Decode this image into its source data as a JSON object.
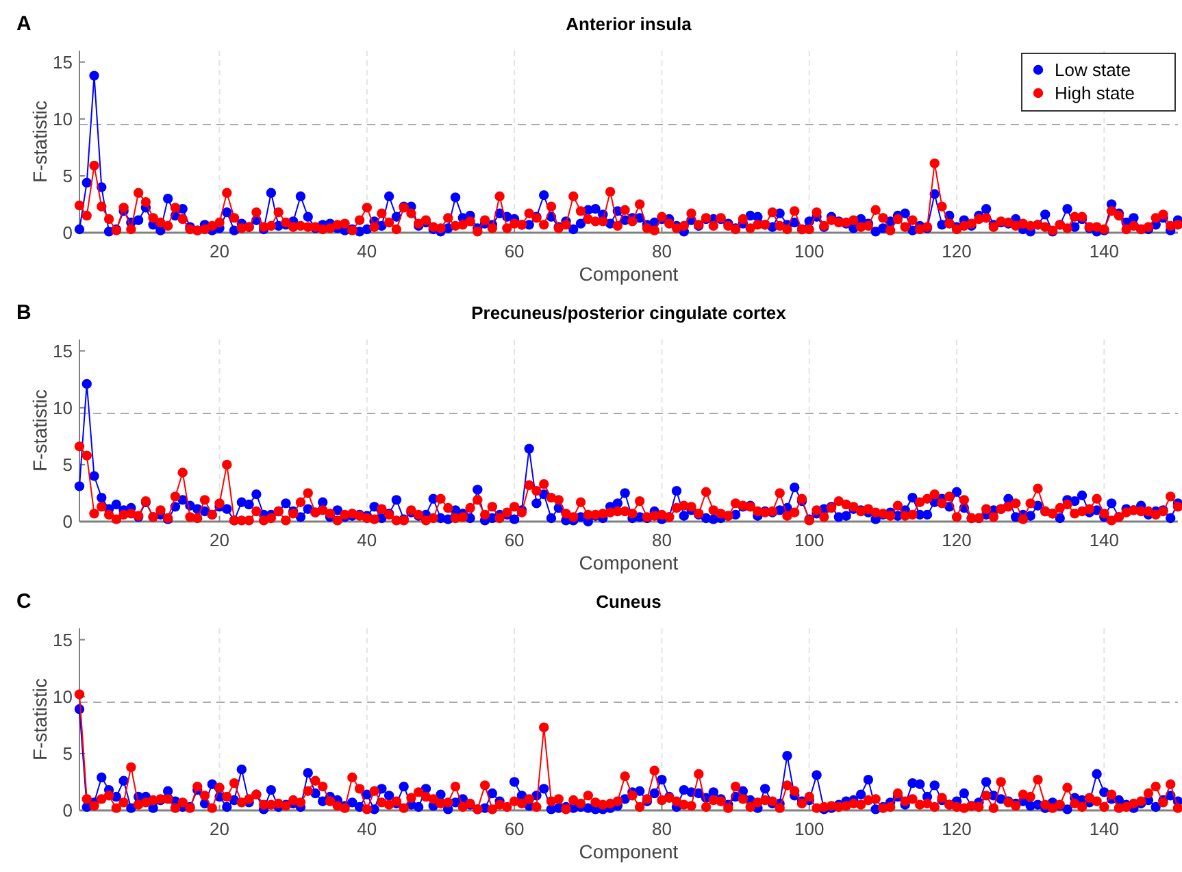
{
  "chart_data": [
    {
      "type": "line",
      "title": "Anterior insula",
      "annotations": [
        "A"
      ],
      "xlabel": "Component",
      "ylabel": "F-statistic",
      "xlim": [
        1,
        150
      ],
      "xticks": [
        20,
        40,
        60,
        80,
        100,
        120,
        140
      ],
      "ylim": [
        0,
        16
      ],
      "yticks": [
        0,
        5,
        10,
        15
      ],
      "grid": "x",
      "legend": "top right",
      "marker": "circle",
      "line_style": "solid",
      "ref_lines": [
        {
          "axis": "y",
          "value": 9.5,
          "color": "#aaaaaa",
          "line_style": "dashed"
        }
      ],
      "x": [
        1,
        2,
        3,
        4,
        5,
        6,
        7,
        8,
        9,
        10,
        11,
        12,
        13,
        14,
        15,
        16,
        17,
        18,
        19,
        20,
        21,
        22,
        23,
        24,
        25,
        26,
        27,
        28,
        29,
        30,
        31,
        32,
        33,
        34,
        35,
        36,
        37,
        38,
        39,
        40,
        41,
        42,
        43,
        44,
        45,
        46,
        47,
        48,
        49,
        50,
        51,
        52,
        53,
        54,
        55,
        56,
        57,
        58,
        59,
        60,
        61,
        62,
        63,
        64,
        65,
        66,
        67,
        68,
        69,
        70,
        71,
        72,
        73,
        74,
        75,
        76,
        77,
        78,
        79,
        80,
        81,
        82,
        83,
        84,
        85,
        86,
        87,
        88,
        89,
        90,
        91,
        92,
        93,
        94,
        95,
        96,
        97,
        98,
        99,
        100,
        101,
        102,
        103,
        104,
        105,
        106,
        107,
        108,
        109,
        110,
        111,
        112,
        113,
        114,
        115,
        116,
        117,
        118,
        119,
        120,
        121,
        122,
        123,
        124,
        125,
        126,
        127,
        128,
        129,
        130,
        131,
        132,
        133,
        134,
        135,
        136,
        137,
        138,
        139,
        140,
        141,
        142,
        143,
        144,
        145,
        146,
        147,
        148,
        149,
        150
      ],
      "series": [
        {
          "name": "Low state",
          "color": "#0000ff",
          "values": [
            0.3,
            4.4,
            13.8,
            4.0,
            0.1,
            0.3,
            1.9,
            0.9,
            1.1,
            2.2,
            0.7,
            0.2,
            3.0,
            1.5,
            2.1,
            0.5,
            0.2,
            0.7,
            0.2,
            0.4,
            1.8,
            0.2,
            0.8,
            0.5,
            1.1,
            0.3,
            3.5,
            0.6,
            0.7,
            1.0,
            3.2,
            1.4,
            0.4,
            0.7,
            0.8,
            0.4,
            0.2,
            0.3,
            0.1,
            0.3,
            1.0,
            0.6,
            3.2,
            1.4,
            2.3,
            2.3,
            0.6,
            0.9,
            0.3,
            0.1,
            0.4,
            3.1,
            1.3,
            1.5,
            0.4,
            0.8,
            0.7,
            1.7,
            1.4,
            1.2,
            0.7,
            0.7,
            1.4,
            3.3,
            1.4,
            0.5,
            1.0,
            0.3,
            0.8,
            2.0,
            2.1,
            1.6,
            0.8,
            1.9,
            1.1,
            1.3,
            1.3,
            0.7,
            0.9,
            1.2,
            1.2,
            0.6,
            0.1,
            1.1,
            0.6,
            1.2,
            1.2,
            1.2,
            0.8,
            0.4,
            0.8,
            1.5,
            1.4,
            0.7,
            0.5,
            1.7,
            0.7,
            0.9,
            0.3,
            1.0,
            1.4,
            0.5,
            1.4,
            1.0,
            0.8,
            0.4,
            1.2,
            0.8,
            0.1,
            0.4,
            1.0,
            1.5,
            1.7,
            0.2,
            0.6,
            0.4,
            3.4,
            0.7,
            1.5,
            0.5,
            1.1,
            0.6,
            1.5,
            2.1,
            0.7,
            0.9,
            0.8,
            1.2,
            0.3,
            0.1,
            0.7,
            1.6,
            0.1,
            0.7,
            2.1,
            0.5,
            1.2,
            0.4,
            0.1,
            0.2,
            2.5,
            1.7,
            0.9,
            1.3,
            0.3,
            0.3,
            0.7,
            1.3,
            0.2,
            1.1
          ]
        },
        {
          "name": "High state",
          "color": "#ff0000",
          "values": [
            2.4,
            1.5,
            5.9,
            2.3,
            1.2,
            0.2,
            2.2,
            0.3,
            3.5,
            2.7,
            1.3,
            0.9,
            0.6,
            2.2,
            1.2,
            0.3,
            0.2,
            0.3,
            0.6,
            0.9,
            3.5,
            1.3,
            0.4,
            0.5,
            1.8,
            0.5,
            0.6,
            1.8,
            0.9,
            0.5,
            0.6,
            0.5,
            0.5,
            0.3,
            0.4,
            0.7,
            0.8,
            0.2,
            1.1,
            2.2,
            0.5,
            1.7,
            0.9,
            0.3,
            2.2,
            1.7,
            0.8,
            1.1,
            0.5,
            0.4,
            1.3,
            0.6,
            0.7,
            1.0,
            0.1,
            1.1,
            0.4,
            3.2,
            0.4,
            0.8,
            0.7,
            1.7,
            1.3,
            0.7,
            2.3,
            0.4,
            0.7,
            3.2,
            1.9,
            1.2,
            1.0,
            1.0,
            3.6,
            0.6,
            2.0,
            1.0,
            2.5,
            0.4,
            0.2,
            1.4,
            0.8,
            0.4,
            0.6,
            1.7,
            0.7,
            1.3,
            0.6,
            1.3,
            0.6,
            0.3,
            1.2,
            0.4,
            0.7,
            0.7,
            1.8,
            0.6,
            0.3,
            1.9,
            0.3,
            0.3,
            1.8,
            0.6,
            1.1,
            0.9,
            0.9,
            1.1,
            0.5,
            0.6,
            2.0,
            1.3,
            0.2,
            1.2,
            0.5,
            1.1,
            0.3,
            0.5,
            6.1,
            2.3,
            0.8,
            0.3,
            0.6,
            0.8,
            1.2,
            1.3,
            0.5,
            1.0,
            0.9,
            0.6,
            0.8,
            0.6,
            0.7,
            0.5,
            0.2,
            0.7,
            0.4,
            1.4,
            1.4,
            0.5,
            0.5,
            0.3,
            1.9,
            1.5,
            0.3,
            0.6,
            0.3,
            0.5,
            1.3,
            1.6,
            0.6,
            0.7
          ]
        }
      ]
    },
    {
      "type": "line",
      "title": "Precuneus/posterior cingulate cortex",
      "annotations": [
        "B"
      ],
      "xlabel": "Component",
      "ylabel": "F-statistic",
      "xlim": [
        1,
        150
      ],
      "xticks": [
        20,
        40,
        60,
        80,
        100,
        120,
        140
      ],
      "ylim": [
        0,
        16
      ],
      "yticks": [
        0,
        5,
        10,
        15
      ],
      "grid": "x",
      "marker": "circle",
      "line_style": "solid",
      "ref_lines": [
        {
          "axis": "y",
          "value": 9.5,
          "color": "#aaaaaa",
          "line_style": "dashed"
        }
      ],
      "x": [
        1,
        2,
        3,
        4,
        5,
        6,
        7,
        8,
        9,
        10,
        11,
        12,
        13,
        14,
        15,
        16,
        17,
        18,
        19,
        20,
        21,
        22,
        23,
        24,
        25,
        26,
        27,
        28,
        29,
        30,
        31,
        32,
        33,
        34,
        35,
        36,
        37,
        38,
        39,
        40,
        41,
        42,
        43,
        44,
        45,
        46,
        47,
        48,
        49,
        50,
        51,
        52,
        53,
        54,
        55,
        56,
        57,
        58,
        59,
        60,
        61,
        62,
        63,
        64,
        65,
        66,
        67,
        68,
        69,
        70,
        71,
        72,
        73,
        74,
        75,
        76,
        77,
        78,
        79,
        80,
        81,
        82,
        83,
        84,
        85,
        86,
        87,
        88,
        89,
        90,
        91,
        92,
        93,
        94,
        95,
        96,
        97,
        98,
        99,
        100,
        101,
        102,
        103,
        104,
        105,
        106,
        107,
        108,
        109,
        110,
        111,
        112,
        113,
        114,
        115,
        116,
        117,
        118,
        119,
        120,
        121,
        122,
        123,
        124,
        125,
        126,
        127,
        128,
        129,
        130,
        131,
        132,
        133,
        134,
        135,
        136,
        137,
        138,
        139,
        140,
        141,
        142,
        143,
        144,
        145,
        146,
        147,
        148,
        149,
        150
      ],
      "series": [
        {
          "color": "#0000ff",
          "values": [
            3.1,
            12.1,
            4.0,
            2.1,
            1.1,
            1.5,
            1.0,
            1.2,
            0.4,
            1.7,
            0.4,
            0.6,
            0.2,
            1.3,
            1.9,
            1.4,
            1.1,
            0.9,
            0.6,
            1.3,
            1.1,
            0.1,
            1.7,
            1.5,
            2.4,
            0.6,
            0.6,
            0.9,
            1.6,
            0.9,
            0.4,
            1.1,
            0.8,
            1.7,
            0.4,
            1.0,
            0.4,
            0.5,
            0.6,
            0.5,
            1.3,
            0.3,
            0.7,
            1.9,
            0.2,
            0.8,
            0.5,
            0.6,
            2.0,
            0.3,
            0.2,
            1.0,
            0.7,
            0.3,
            2.8,
            0.1,
            0.3,
            0.6,
            0.6,
            0.2,
            1.0,
            6.4,
            1.6,
            2.4,
            0.3,
            1.2,
            0.1,
            0.1,
            0.4,
            0.0,
            0.5,
            0.3,
            1.3,
            1.6,
            2.5,
            0.3,
            0.4,
            0.3,
            0.9,
            0.2,
            0.4,
            2.7,
            0.5,
            1.0,
            0.6,
            0.3,
            0.2,
            0.3,
            0.5,
            0.6,
            1.3,
            1.4,
            0.5,
            0.9,
            0.8,
            1.0,
            1.2,
            3.0,
            1.8,
            0.2,
            0.7,
            1.1,
            1.3,
            0.4,
            0.5,
            1.1,
            1.0,
            0.8,
            0.2,
            0.6,
            0.8,
            0.5,
            1.0,
            2.1,
            0.6,
            0.6,
            1.7,
            2.0,
            1.3,
            2.6,
            1.2,
            0.3,
            0.3,
            0.6,
            1.0,
            1.1,
            2.0,
            0.4,
            0.6,
            0.5,
            1.4,
            0.9,
            0.7,
            0.3,
            1.9,
            1.8,
            2.3,
            0.8,
            1.0,
            0.4,
            1.6,
            0.4,
            1.1,
            1.0,
            1.4,
            0.6,
            0.9,
            1.0,
            0.3,
            1.6
          ]
        },
        {
          "color": "#ff0000",
          "values": [
            6.6,
            5.8,
            0.7,
            1.3,
            0.6,
            0.2,
            0.6,
            0.7,
            0.5,
            1.8,
            0.4,
            1.0,
            0.3,
            2.2,
            4.3,
            0.4,
            0.3,
            1.9,
            0.6,
            1.6,
            5.0,
            0.1,
            0.1,
            0.1,
            0.9,
            0.1,
            0.3,
            0.9,
            0.1,
            0.7,
            1.7,
            2.5,
            0.8,
            1.0,
            0.7,
            0.1,
            0.6,
            0.7,
            0.5,
            0.3,
            0.2,
            1.1,
            0.6,
            0.1,
            0.1,
            1.0,
            0.6,
            0.1,
            0.3,
            2.0,
            1.2,
            0.3,
            0.4,
            1.2,
            1.9,
            0.6,
            1.3,
            0.3,
            0.8,
            1.3,
            0.8,
            3.2,
            2.7,
            3.3,
            2.1,
            1.9,
            0.7,
            0.4,
            1.7,
            0.6,
            0.6,
            0.7,
            0.8,
            0.9,
            0.9,
            0.7,
            1.8,
            0.4,
            0.5,
            0.6,
            0.4,
            1.2,
            1.4,
            1.3,
            0.7,
            2.6,
            1.0,
            0.7,
            0.5,
            1.6,
            1.4,
            1.3,
            0.9,
            0.8,
            0.9,
            2.5,
            0.5,
            0.8,
            2.0,
            0.1,
            1.0,
            0.4,
            1.2,
            1.8,
            1.5,
            1.3,
            0.9,
            1.1,
            0.8,
            0.7,
            0.5,
            1.4,
            0.5,
            0.6,
            1.7,
            2.0,
            2.4,
            1.6,
            2.2,
            0.4,
            1.9,
            0.3,
            0.3,
            1.1,
            0.4,
            1.1,
            1.3,
            1.6,
            0.2,
            1.6,
            2.9,
            0.9,
            0.7,
            1.2,
            1.5,
            0.7,
            0.9,
            1.1,
            2.0,
            0.7,
            0.1,
            0.4,
            0.8,
            1.0,
            0.9,
            0.9,
            0.6,
            0.9,
            2.2,
            1.3
          ]
        }
      ]
    },
    {
      "type": "line",
      "title": "Cuneus",
      "annotations": [
        "C"
      ],
      "xlabel": "Component",
      "ylabel": "F-statistic",
      "xlim": [
        1,
        150
      ],
      "xticks": [
        20,
        40,
        60,
        80,
        100,
        120,
        140
      ],
      "ylim": [
        0,
        16
      ],
      "yticks": [
        0,
        5,
        10,
        15
      ],
      "grid": "x",
      "marker": "circle",
      "line_style": "solid",
      "ref_lines": [
        {
          "axis": "y",
          "value": 9.5,
          "color": "#aaaaaa",
          "line_style": "dashed"
        }
      ],
      "x": [
        1,
        2,
        3,
        4,
        5,
        6,
        7,
        8,
        9,
        10,
        11,
        12,
        13,
        14,
        15,
        16,
        17,
        18,
        19,
        20,
        21,
        22,
        23,
        24,
        25,
        26,
        27,
        28,
        29,
        30,
        31,
        32,
        33,
        34,
        35,
        36,
        37,
        38,
        39,
        40,
        41,
        42,
        43,
        44,
        45,
        46,
        47,
        48,
        49,
        50,
        51,
        52,
        53,
        54,
        55,
        56,
        57,
        58,
        59,
        60,
        61,
        62,
        63,
        64,
        65,
        66,
        67,
        68,
        69,
        70,
        71,
        72,
        73,
        74,
        75,
        76,
        77,
        78,
        79,
        80,
        81,
        82,
        83,
        84,
        85,
        86,
        87,
        88,
        89,
        90,
        91,
        92,
        93,
        94,
        95,
        96,
        97,
        98,
        99,
        100,
        101,
        102,
        103,
        104,
        105,
        106,
        107,
        108,
        109,
        110,
        111,
        112,
        113,
        114,
        115,
        116,
        117,
        118,
        119,
        120,
        121,
        122,
        123,
        124,
        125,
        126,
        127,
        128,
        129,
        130,
        131,
        132,
        133,
        134,
        135,
        136,
        137,
        138,
        139,
        140,
        141,
        142,
        143,
        144,
        145,
        146,
        147,
        148,
        149,
        150
      ],
      "series": [
        {
          "color": "#0000ff",
          "values": [
            8.9,
            0.3,
            0.7,
            2.9,
            1.8,
            1.2,
            2.6,
            0.2,
            1.2,
            1.2,
            0.2,
            0.9,
            1.7,
            0.8,
            0.3,
            0.3,
            1.8,
            0.6,
            2.3,
            1.2,
            0.3,
            0.9,
            3.6,
            0.7,
            1.4,
            0.1,
            1.8,
            0.3,
            0.5,
            0.6,
            0.3,
            3.3,
            1.5,
            0.8,
            1.2,
            0.9,
            0.4,
            0.7,
            0.3,
            1.4,
            0.1,
            1.9,
            1.3,
            0.6,
            2.1,
            0.5,
            0.3,
            1.9,
            0.4,
            1.4,
            0.1,
            0.7,
            1.0,
            0.5,
            0.1,
            0.2,
            1.5,
            0.8,
            null,
            2.5,
            1.3,
            0.4,
            1.3,
            1.9,
            0.1,
            0.2,
            0.3,
            0.2,
            0.3,
            0.2,
            0.1,
            0.1,
            0.2,
            0.4,
            1.0,
            1.6,
            1.7,
            0.8,
            1.5,
            2.7,
            1.2,
            0.3,
            1.8,
            1.6,
            1.5,
            1.1,
            1.6,
            1.0,
            0.5,
            1.2,
            1.7,
            0.9,
            0.2,
            1.9,
            0.6,
            0.6,
            4.8,
            1.3,
            0.8,
            0.9,
            3.1,
            0.1,
            0.2,
            0.5,
            0.8,
            0.9,
            1.4,
            2.7,
            0.1,
            0.3,
            0.7,
            1.2,
            0.5,
            2.4,
            2.3,
            1.2,
            2.2,
            0.9,
            0.5,
            0.8,
            1.5,
            0.4,
            0.7,
            2.5,
            1.3,
            1.0,
            0.8,
            0.6,
            0.8,
            0.4,
            0.5,
            0.2,
            0.7,
            0.4,
            0.1,
            1.1,
            0.9,
            0.7,
            3.2,
            1.6,
            1.0,
            0.9,
            0.5,
            0.2,
            0.6,
            0.9,
            0.3,
            0.9,
            1.3,
            0.8
          ]
        },
        {
          "color": "#ff0000",
          "values": [
            10.2,
            1.0,
            0.4,
            1.0,
            1.3,
            0.2,
            0.7,
            3.8,
            0.5,
            0.7,
            0.9,
            1.0,
            1.0,
            0.2,
            0.7,
            0.2,
            2.1,
            1.3,
            0.2,
            2.0,
            1.2,
            2.4,
            0.7,
            1.0,
            1.4,
            0.5,
            0.5,
            0.6,
            0.4,
            0.9,
            0.7,
            1.7,
            2.6,
            2.1,
            0.8,
            0.4,
            0.2,
            2.9,
            1.9,
            0.1,
            1.7,
            0.7,
            0.5,
            0.8,
            0.2,
            1.1,
            1.6,
            1.2,
            1.0,
            0.6,
            0.7,
            2.1,
            0.3,
            0.6,
            0.1,
            2.2,
            0.1,
            0.5,
            0.3,
            0.8,
            0.6,
            1.0,
            0.3,
            7.3,
            0.8,
            1.0,
            0.1,
            0.9,
            0.6,
            1.3,
            0.7,
            0.5,
            0.6,
            0.8,
            3.0,
            1.3,
            0.3,
            1.0,
            3.5,
            0.9,
            1.1,
            0.8,
            0.5,
            0.4,
            3.2,
            0.3,
            0.9,
            0.8,
            0.2,
            2.1,
            1.0,
            0.3,
            0.7,
            0.9,
            0.8,
            0.2,
            2.2,
            1.7,
            0.6,
            1.2,
            0.2,
            0.3,
            0.4,
            0.3,
            0.4,
            0.6,
            0.5,
            0.9,
            1.0,
            0.2,
            0.3,
            1.5,
            0.8,
            1.0,
            0.5,
            0.6,
            0.3,
            1.1,
            0.5,
            0.3,
            0.2,
            0.4,
            0.3,
            1.3,
            0.2,
            2.5,
            0.7,
            0.4,
            1.4,
            1.2,
            2.7,
            0.5,
            0.2,
            0.5,
            2.0,
            0.6,
            0.3,
            1.1,
            0.8,
            0.3,
            1.4,
            0.2,
            0.3,
            0.6,
            0.8,
            1.5,
            2.1,
            0.7,
            2.3,
            0.2
          ]
        }
      ]
    }
  ]
}
